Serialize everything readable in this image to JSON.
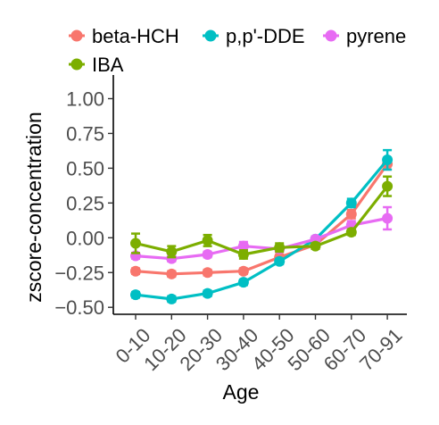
{
  "chart_data": {
    "type": "line",
    "xlabel": "Age",
    "ylabel": "zscore-concentration",
    "categories": [
      "0-10",
      "10-20",
      "20-30",
      "30-40",
      "40-50",
      "50-60",
      "60-70",
      "70-91"
    ],
    "ylim": [
      -0.55,
      1.17
    ],
    "yticks": [
      -0.5,
      -0.25,
      0.0,
      0.25,
      0.5,
      0.75,
      1.0
    ],
    "ytick_labels": [
      "−0.50",
      "−0.25",
      "0.00",
      "0.25",
      "0.50",
      "0.75",
      "1.00"
    ],
    "legend_position": "top",
    "grid": false,
    "series": [
      {
        "name": "beta-HCH",
        "color": "#F8766D",
        "values": [
          -0.24,
          -0.26,
          -0.25,
          -0.24,
          -0.14,
          -0.05,
          0.17,
          0.53
        ],
        "errors": [
          0.02,
          0.02,
          0.02,
          0.02,
          0.02,
          0.02,
          0.03,
          0.04
        ]
      },
      {
        "name": "p,p'-DDE",
        "color": "#00BFC4",
        "values": [
          -0.41,
          -0.44,
          -0.4,
          -0.32,
          -0.17,
          -0.01,
          0.25,
          0.56
        ],
        "errors": [
          0.02,
          0.02,
          0.02,
          0.02,
          0.02,
          0.02,
          0.03,
          0.07
        ]
      },
      {
        "name": "pyrene",
        "color": "#E76BF3",
        "values": [
          -0.13,
          -0.15,
          -0.12,
          -0.06,
          -0.08,
          -0.01,
          0.09,
          0.14
        ],
        "errors": [
          0.02,
          0.02,
          0.02,
          0.03,
          0.02,
          0.02,
          0.03,
          0.08
        ]
      },
      {
        "name": "IBA",
        "color": "#7CAE00",
        "values": [
          -0.04,
          -0.1,
          -0.02,
          -0.12,
          -0.07,
          -0.06,
          0.04,
          0.37
        ],
        "errors": [
          0.07,
          0.04,
          0.04,
          0.03,
          0.03,
          0.02,
          0.02,
          0.07
        ]
      }
    ]
  }
}
